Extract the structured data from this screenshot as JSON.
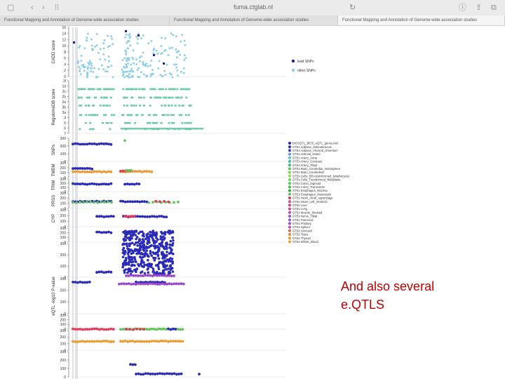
{
  "browser": {
    "url": "fuma.ctglab.nl",
    "tabs": [
      {
        "label": "Functional Mapping and Annotation of Genome-wide association studies",
        "active": false
      },
      {
        "label": "Functional Mapping and Annotation of Genome-wide association studies",
        "active": false
      },
      {
        "label": "Functional Mapping and Annotation of Genome-wide association studies",
        "active": true
      }
    ]
  },
  "chart_data": {
    "type": "scatter",
    "panels": [
      {
        "ylabel": "CADD score",
        "ticks": [
          "0",
          "2",
          "4",
          "6",
          "8",
          "10",
          "12",
          "14",
          "16"
        ],
        "ylim": [
          0,
          16
        ]
      },
      {
        "ylabel": "RegulomeDB score",
        "ticks": [
          "7",
          "6",
          "5",
          "4",
          "3a",
          "3b",
          "2a",
          "2b",
          "2c",
          "1d",
          "1f"
        ],
        "ylim": [
          0,
          11
        ]
      },
      {
        "ylabel": "SNPs",
        "ticks": [
          "0",
          "100",
          "200",
          "300"
        ],
        "ylim": [
          0,
          300
        ]
      },
      {
        "ylabel": "TMEM",
        "ticks": [
          "0",
          "100",
          "200",
          "300"
        ],
        "ylim": [
          0,
          300
        ]
      },
      {
        "ylabel": "TRIM",
        "ticks": [
          "0",
          "100",
          "200",
          "300"
        ],
        "ylim": [
          0,
          300
        ]
      },
      {
        "ylabel": "PRSS",
        "ticks": [
          "0",
          "100",
          "200",
          "300"
        ],
        "ylim": [
          0,
          300
        ]
      },
      {
        "ylabel": "CYP",
        "ticks": [
          "0",
          "100",
          "200",
          "300"
        ],
        "ylim": [
          0,
          300
        ]
      },
      {
        "ylabel": "",
        "ticks": [
          "0",
          "100",
          "200",
          "300"
        ],
        "ylim": [
          0,
          300
        ]
      },
      {
        "ylabel": "",
        "ticks": [
          "0",
          "100",
          "200",
          "300"
        ],
        "ylim": [
          0,
          300
        ]
      },
      {
        "ylabel": "eQTL -log10 P-value",
        "ticks": [
          "0",
          "100",
          "200",
          "300"
        ],
        "ylim": [
          0,
          300
        ]
      },
      {
        "ylabel": "",
        "ticks": [
          "0",
          "100",
          "200",
          "300"
        ],
        "ylim": [
          0,
          300
        ]
      },
      {
        "ylabel": "",
        "ticks": [
          "0",
          "100",
          "200",
          "300"
        ],
        "ylim": [
          0,
          300
        ]
      },
      {
        "ylabel": "",
        "ticks": [
          "0",
          "100",
          "200",
          "300"
        ],
        "ylim": [
          0,
          300
        ]
      }
    ],
    "legend_snps": [
      {
        "name": "lead SNPs",
        "color": "#1f1f9a"
      },
      {
        "name": "other SNPs",
        "color": "#8ccfe6"
      }
    ],
    "legend_eqtl": [
      {
        "name": "BIOSQTL_BIOS_eQTL_geneLevel",
        "color": "#2a2ab8"
      },
      {
        "name": "GTEx Adipose_Subcutaneous",
        "color": "#2a2ab8"
      },
      {
        "name": "GTEx Adipose_Visceral_Omentum",
        "color": "#3a3acc"
      },
      {
        "name": "GTEx Adrenal_Gland",
        "color": "#5aa0e0"
      },
      {
        "name": "GTEx Artery_Aorta",
        "color": "#56c7c7"
      },
      {
        "name": "GTEx Artery_Coronary",
        "color": "#48b8a8"
      },
      {
        "name": "GTEx Artery_Tibial",
        "color": "#3cb878"
      },
      {
        "name": "GTEx Brain_Cerebellar_Hemisphere",
        "color": "#62c25c"
      },
      {
        "name": "GTEx Brain_Cerebellum",
        "color": "#7ad04c"
      },
      {
        "name": "GTEx Cells_EBV-transformed_lymphocytes",
        "color": "#98d642"
      },
      {
        "name": "GTEx Cells_Transformed_fibroblasts",
        "color": "#6cd86c"
      },
      {
        "name": "GTEx Colon_Sigmoid",
        "color": "#4cc84c"
      },
      {
        "name": "GTEx Colon_Transverse",
        "color": "#44bb44"
      },
      {
        "name": "GTEx Esophagus_Mucosa",
        "color": "#3aa83a"
      },
      {
        "name": "GTEx Esophagus_Muscularis",
        "color": "#58c858"
      },
      {
        "name": "GTEx Heart_Atrial_Appendage",
        "color": "#e23a5a"
      },
      {
        "name": "GTEx Heart_Left_Ventricle",
        "color": "#e04a70"
      },
      {
        "name": "GTEx Liver",
        "color": "#d83a8a"
      },
      {
        "name": "GTEx Lung",
        "color": "#c244a8"
      },
      {
        "name": "GTEx Muscle_Skeletal",
        "color": "#b44cc0"
      },
      {
        "name": "GTEx Nerve_Tibial",
        "color": "#a052cc"
      },
      {
        "name": "GTEx Pancreas",
        "color": "#8c58d6"
      },
      {
        "name": "GTEx Pituitary",
        "color": "#9a48c8"
      },
      {
        "name": "GTEx Spleen",
        "color": "#b850c8"
      },
      {
        "name": "GTEx Stomach",
        "color": "#d86a4a"
      },
      {
        "name": "GTEx Testis",
        "color": "#e48a3a"
      },
      {
        "name": "GTEx Thyroid",
        "color": "#ec9a32"
      },
      {
        "name": "GTEx Whole_Blood",
        "color": "#f0a030"
      }
    ]
  },
  "annotation": {
    "line1": "And also several",
    "line2": "e.QTLS"
  }
}
